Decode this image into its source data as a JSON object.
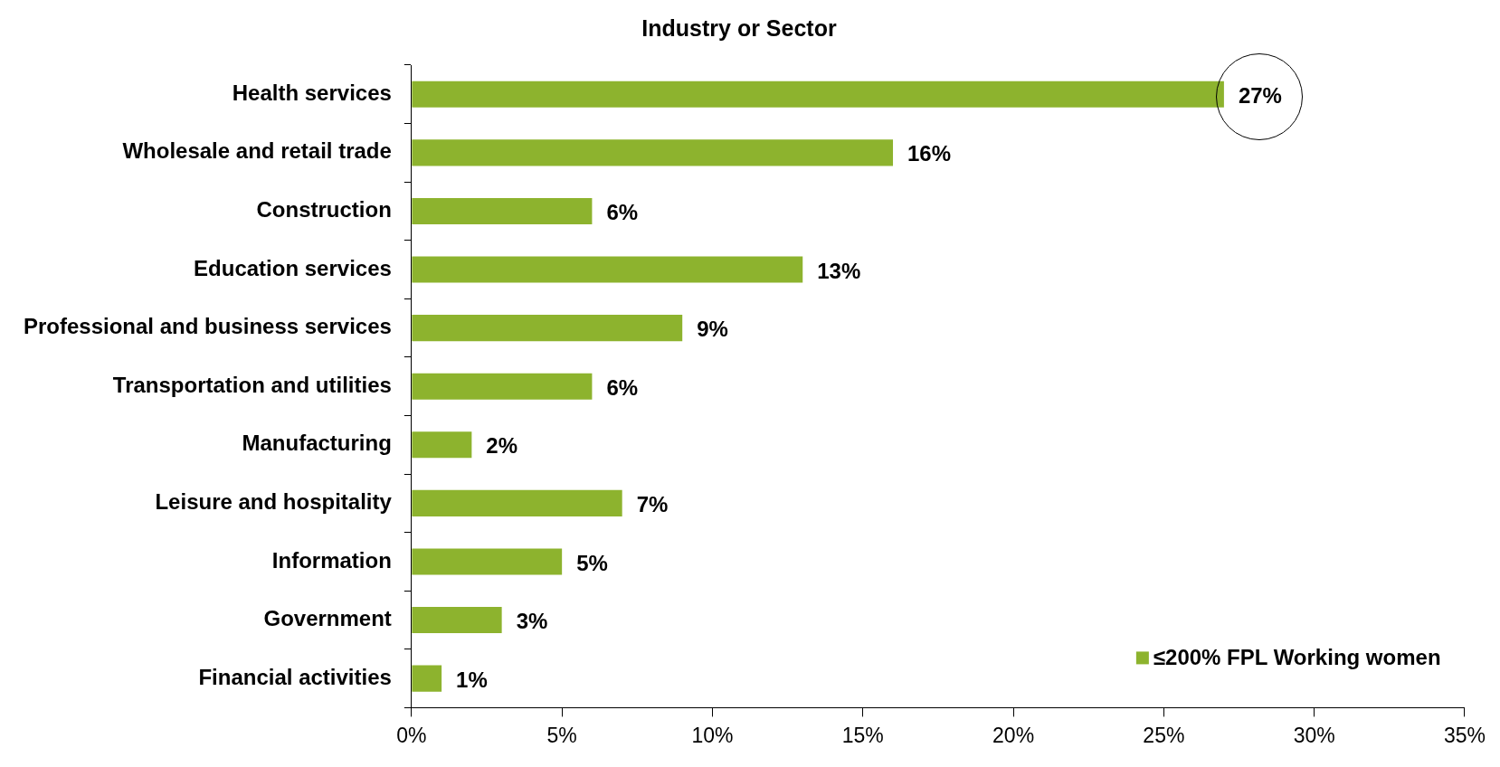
{
  "chart_data": {
    "type": "bar",
    "orientation": "horizontal",
    "title": "Industry or Sector",
    "categories": [
      "Health services",
      "Wholesale and retail trade",
      "Construction",
      "Education services",
      "Professional and business services",
      "Transportation and utilities",
      "Manufacturing",
      "Leisure and hospitality",
      "Information",
      "Government",
      "Financial activities"
    ],
    "series": [
      {
        "name": "≤200% FPL Working women",
        "color": "#8db32e",
        "values": [
          27,
          16,
          6,
          13,
          9,
          6,
          2,
          7,
          5,
          3,
          1
        ],
        "value_labels": [
          "27%",
          "16%",
          "6%",
          "13%",
          "9%",
          "6%",
          "2%",
          "7%",
          "5%",
          "3%",
          "1%"
        ]
      }
    ],
    "xlim": [
      0,
      35
    ],
    "xticks": [
      {
        "value": 0,
        "label": "0%"
      },
      {
        "value": 5,
        "label": "5%"
      },
      {
        "value": 10,
        "label": "10%"
      },
      {
        "value": 15,
        "label": "15%"
      },
      {
        "value": 20,
        "label": "20%"
      },
      {
        "value": 25,
        "label": "25%"
      },
      {
        "value": 30,
        "label": "30%"
      },
      {
        "value": 35,
        "label": "35%"
      }
    ],
    "grid": false,
    "legend": "bottom right"
  }
}
